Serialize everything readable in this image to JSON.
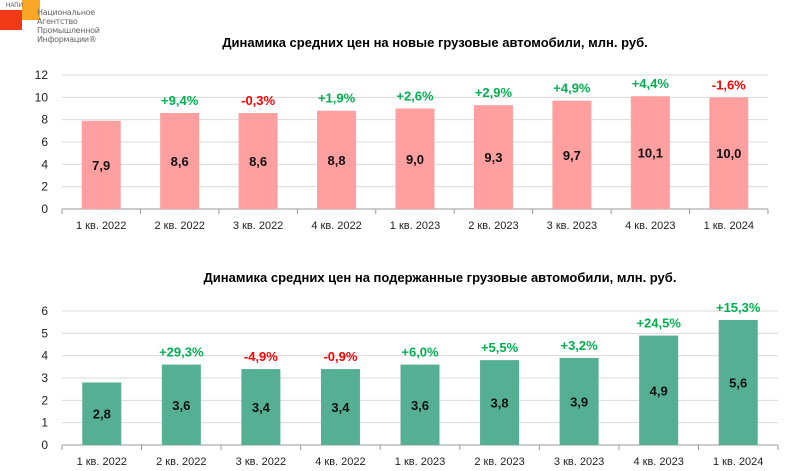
{
  "logo": {
    "abbr": "НАПИ",
    "lines": [
      "Национальное",
      "Агентство",
      "Промышленной",
      "Информации®"
    ]
  },
  "colors": {
    "new_bar": "#FF9F9F",
    "used_bar": "#55AF92",
    "positive": "#00B050",
    "negative": "#FF0000"
  },
  "chart_data": [
    {
      "type": "bar",
      "title": "Динамика средних цен на новые грузовые автомобили, млн. руб.",
      "categories": [
        "1 кв. 2022",
        "2 кв. 2022",
        "3 кв. 2022",
        "4 кв. 2022",
        "1 кв. 2023",
        "2 кв. 2023",
        "3 кв. 2023",
        "4 кв. 2023",
        "1 кв. 2024"
      ],
      "values": [
        7.9,
        8.6,
        8.6,
        8.8,
        9.0,
        9.3,
        9.7,
        10.1,
        10.0
      ],
      "value_labels": [
        "7,9",
        "8,6",
        "8,6",
        "8,8",
        "9,0",
        "9,3",
        "9,7",
        "10,1",
        "10,0"
      ],
      "changes": [
        "",
        "+9,4%",
        "-0,3%",
        "+1,9%",
        "+2,6%",
        "+2,9%",
        "+4,9%",
        "+4,4%",
        "-1,6%"
      ],
      "yticks": [
        "0",
        "2",
        "4",
        "6",
        "8",
        "10",
        "12"
      ],
      "ylim": [
        0,
        12
      ],
      "grid": true
    },
    {
      "type": "bar",
      "title": "Динамика средних цен на подержанные грузовые автомобили, млн. руб.",
      "categories": [
        "1 кв. 2022",
        "2 кв. 2022",
        "3 кв. 2022",
        "4 кв. 2022",
        "1 кв. 2023",
        "2 кв. 2023",
        "3 кв. 2023",
        "4 кв. 2023",
        "1 кв. 2024"
      ],
      "values": [
        2.8,
        3.6,
        3.4,
        3.4,
        3.6,
        3.8,
        3.9,
        4.9,
        5.6
      ],
      "value_labels": [
        "2,8",
        "3,6",
        "3,4",
        "3,4",
        "3,6",
        "3,8",
        "3,9",
        "4,9",
        "5,6"
      ],
      "changes": [
        "",
        "+29,3%",
        "-4,9%",
        "-0,9%",
        "+6,0%",
        "+5,5%",
        "+3,2%",
        "+24,5%",
        "+15,3%"
      ],
      "yticks": [
        "0",
        "1",
        "2",
        "3",
        "4",
        "5",
        "6"
      ],
      "ylim": [
        0,
        6
      ],
      "grid": true
    }
  ]
}
